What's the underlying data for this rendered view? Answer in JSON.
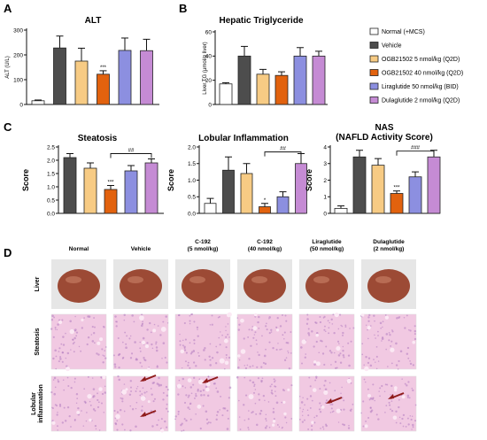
{
  "panels": {
    "a": "A",
    "b": "B",
    "c": "C",
    "d": "D"
  },
  "colors": {
    "groups": [
      "#ffffff",
      "#4d4d4d",
      "#f7cb84",
      "#e2620e",
      "#8c8fe0",
      "#c58bd4"
    ],
    "liver": "#9c4a35",
    "tissue": "#f1c9e2",
    "arrow": "#8f1b1b"
  },
  "legend": [
    "Normal (+MCS)",
    "Vehicle",
    "OGB21502 5 nmol/kg (Q2D)",
    "OGB21502 40 nmol/kg (Q2D)",
    "Liraglutide 50 nmol/kg (BID)",
    "Dulaglutide 2 nmol/kg (Q2D)"
  ],
  "chart_data": [
    {
      "id": "alt",
      "type": "bar",
      "title": "ALT",
      "ylabel": "ALT (U/L)",
      "ylim": [
        0,
        300
      ],
      "yticks": [
        "0",
        "100",
        "200",
        "300"
      ],
      "values": [
        15,
        228,
        175,
        122,
        218,
        217
      ],
      "errors": [
        3,
        48,
        52,
        14,
        50,
        46
      ],
      "annotations": [
        "",
        "",
        "",
        "***",
        "",
        ""
      ],
      "brackets": []
    },
    {
      "id": "tg",
      "type": "bar",
      "title": "Hepatic Triglyceride",
      "ylabel": "Liver TG (μmol/g liver)",
      "ylim": [
        0,
        60
      ],
      "yticks": [
        "0",
        "20",
        "40",
        "60"
      ],
      "values": [
        17,
        40,
        25,
        24,
        40,
        40
      ],
      "errors": [
        1,
        8,
        4,
        3,
        7,
        4
      ],
      "annotations": [
        "",
        "",
        "",
        "",
        "",
        ""
      ],
      "brackets": []
    },
    {
      "id": "steatosis",
      "type": "bar",
      "title": "Steatosis",
      "ylabel": "Score",
      "ylim": [
        0,
        2.5
      ],
      "yticks": [
        "0.0",
        "0.5",
        "1.0",
        "1.5",
        "2.0",
        "2.5"
      ],
      "values": [
        2.1,
        1.7,
        0.9,
        1.6,
        1.9
      ],
      "errors": [
        0.15,
        0.2,
        0.15,
        0.2,
        0.15
      ],
      "colorIdx": [
        1,
        2,
        3,
        4,
        5
      ],
      "annotations": [
        "",
        "",
        "***",
        "",
        ""
      ],
      "brackets": [
        {
          "from": 2,
          "to": 4,
          "label": "##",
          "y": 2.25
        }
      ]
    },
    {
      "id": "lobular",
      "type": "bar",
      "title": "Lobular Inflammation",
      "ylabel": "Score",
      "ylim": [
        0,
        2.0
      ],
      "yticks": [
        "0.0",
        "0.5",
        "1.0",
        "1.5",
        "2.0"
      ],
      "values": [
        0.3,
        1.3,
        1.2,
        0.2,
        0.5,
        1.5
      ],
      "errors": [
        0.15,
        0.4,
        0.3,
        0.1,
        0.15,
        0.3
      ],
      "annotations": [
        "",
        "",
        "",
        "*",
        "",
        ""
      ],
      "brackets": [
        {
          "from": 3,
          "to": 5,
          "label": "##",
          "y": 1.85
        }
      ]
    },
    {
      "id": "nas",
      "type": "bar",
      "title": "NAS",
      "subtitle": "(NAFLD Activity Score)",
      "ylabel": "Score",
      "ylim": [
        0,
        4
      ],
      "yticks": [
        "0",
        "1",
        "2",
        "3",
        "4"
      ],
      "values": [
        0.3,
        3.4,
        2.9,
        1.2,
        2.2,
        3.4
      ],
      "errors": [
        0.15,
        0.4,
        0.4,
        0.15,
        0.3,
        0.4
      ],
      "annotations": [
        "",
        "",
        "",
        "***",
        "",
        ""
      ],
      "brackets": [
        {
          "from": 3,
          "to": 5,
          "label": "###",
          "y": 3.75
        }
      ]
    }
  ],
  "histology": {
    "columns": [
      [
        "Normal"
      ],
      [
        "Vehicle"
      ],
      [
        "C-192",
        "(5 nmol/kg)"
      ],
      [
        "C-192",
        "(40 nmol/kg)"
      ],
      [
        "Liraglutide",
        "(50 nmol/kg)"
      ],
      [
        "Dulaglutide",
        "(2 nmol/kg)"
      ]
    ],
    "rows": [
      [
        "Liver"
      ],
      [
        "Steatosis"
      ],
      [
        "Lobular",
        "inflammation"
      ]
    ]
  }
}
